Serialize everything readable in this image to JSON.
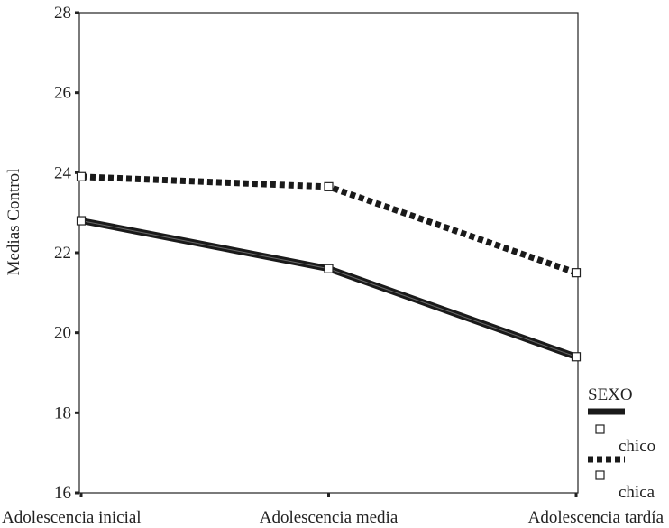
{
  "chart_data": {
    "type": "line",
    "title": "",
    "xlabel": "",
    "ylabel": "Medias Control",
    "categories": [
      "Adolescencia inicial",
      "Adolescencia media",
      "Adolescencia tardía"
    ],
    "ylim": [
      16,
      28
    ],
    "yticks": [
      16,
      18,
      20,
      22,
      24,
      26,
      28
    ],
    "grid": false,
    "legend": {
      "title": "SEXO",
      "position": "bottom-right",
      "entries": [
        "chico",
        "chica"
      ]
    },
    "series": [
      {
        "name": "chico",
        "values": [
          22.8,
          21.6,
          19.4
        ],
        "line_style": "solid",
        "color": "#1a1a1a",
        "marker": "open-square"
      },
      {
        "name": "chica",
        "values": [
          23.9,
          23.65,
          21.5
        ],
        "line_style": "dotted",
        "color": "#1a1a1a",
        "marker": "open-square"
      }
    ]
  }
}
